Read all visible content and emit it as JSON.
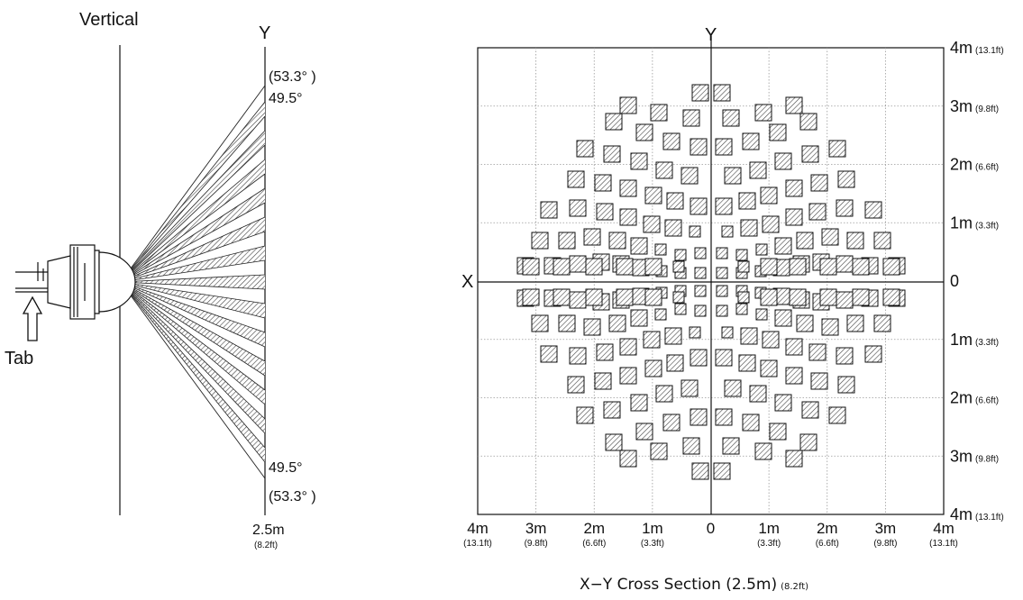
{
  "vertical": {
    "title": "Vertical",
    "axis_label": "Y",
    "angle_top_outer": "(53.3° )",
    "angle_top_inner": "49.5°",
    "angle_bottom_inner": "49.5°",
    "angle_bottom_outer": "(53.3° )",
    "distance_label": "2.5m",
    "distance_sub": "(8.2ft)",
    "tab_label": "Tab"
  },
  "cross_section": {
    "axis_y": "Y",
    "axis_x": "X",
    "right_labels": [
      {
        "m": "4m",
        "ft": "(13.1ft)"
      },
      {
        "m": "3m",
        "ft": "(9.8ft)"
      },
      {
        "m": "2m",
        "ft": "(6.6ft)"
      },
      {
        "m": "1m",
        "ft": "(3.3ft)"
      },
      {
        "m": "0",
        "ft": ""
      },
      {
        "m": "1m",
        "ft": "(3.3ft)"
      },
      {
        "m": "2m",
        "ft": "(6.6ft)"
      },
      {
        "m": "3m",
        "ft": "(9.8ft)"
      },
      {
        "m": "4m",
        "ft": "(13.1ft)"
      }
    ],
    "bottom_labels": [
      {
        "m": "4m",
        "ft": "(13.1ft)"
      },
      {
        "m": "3m",
        "ft": "(9.8ft)"
      },
      {
        "m": "2m",
        "ft": "(6.6ft)"
      },
      {
        "m": "1m",
        "ft": "(3.3ft)"
      },
      {
        "m": "0",
        "ft": ""
      },
      {
        "m": "1m",
        "ft": "(3.3ft)"
      },
      {
        "m": "2m",
        "ft": "(6.6ft)"
      },
      {
        "m": "3m",
        "ft": "(9.8ft)"
      },
      {
        "m": "4m",
        "ft": "(13.1ft)"
      }
    ],
    "caption_main": "X−Y Cross Section (2.5m)",
    "caption_sub": "(8.2ft)"
  }
}
